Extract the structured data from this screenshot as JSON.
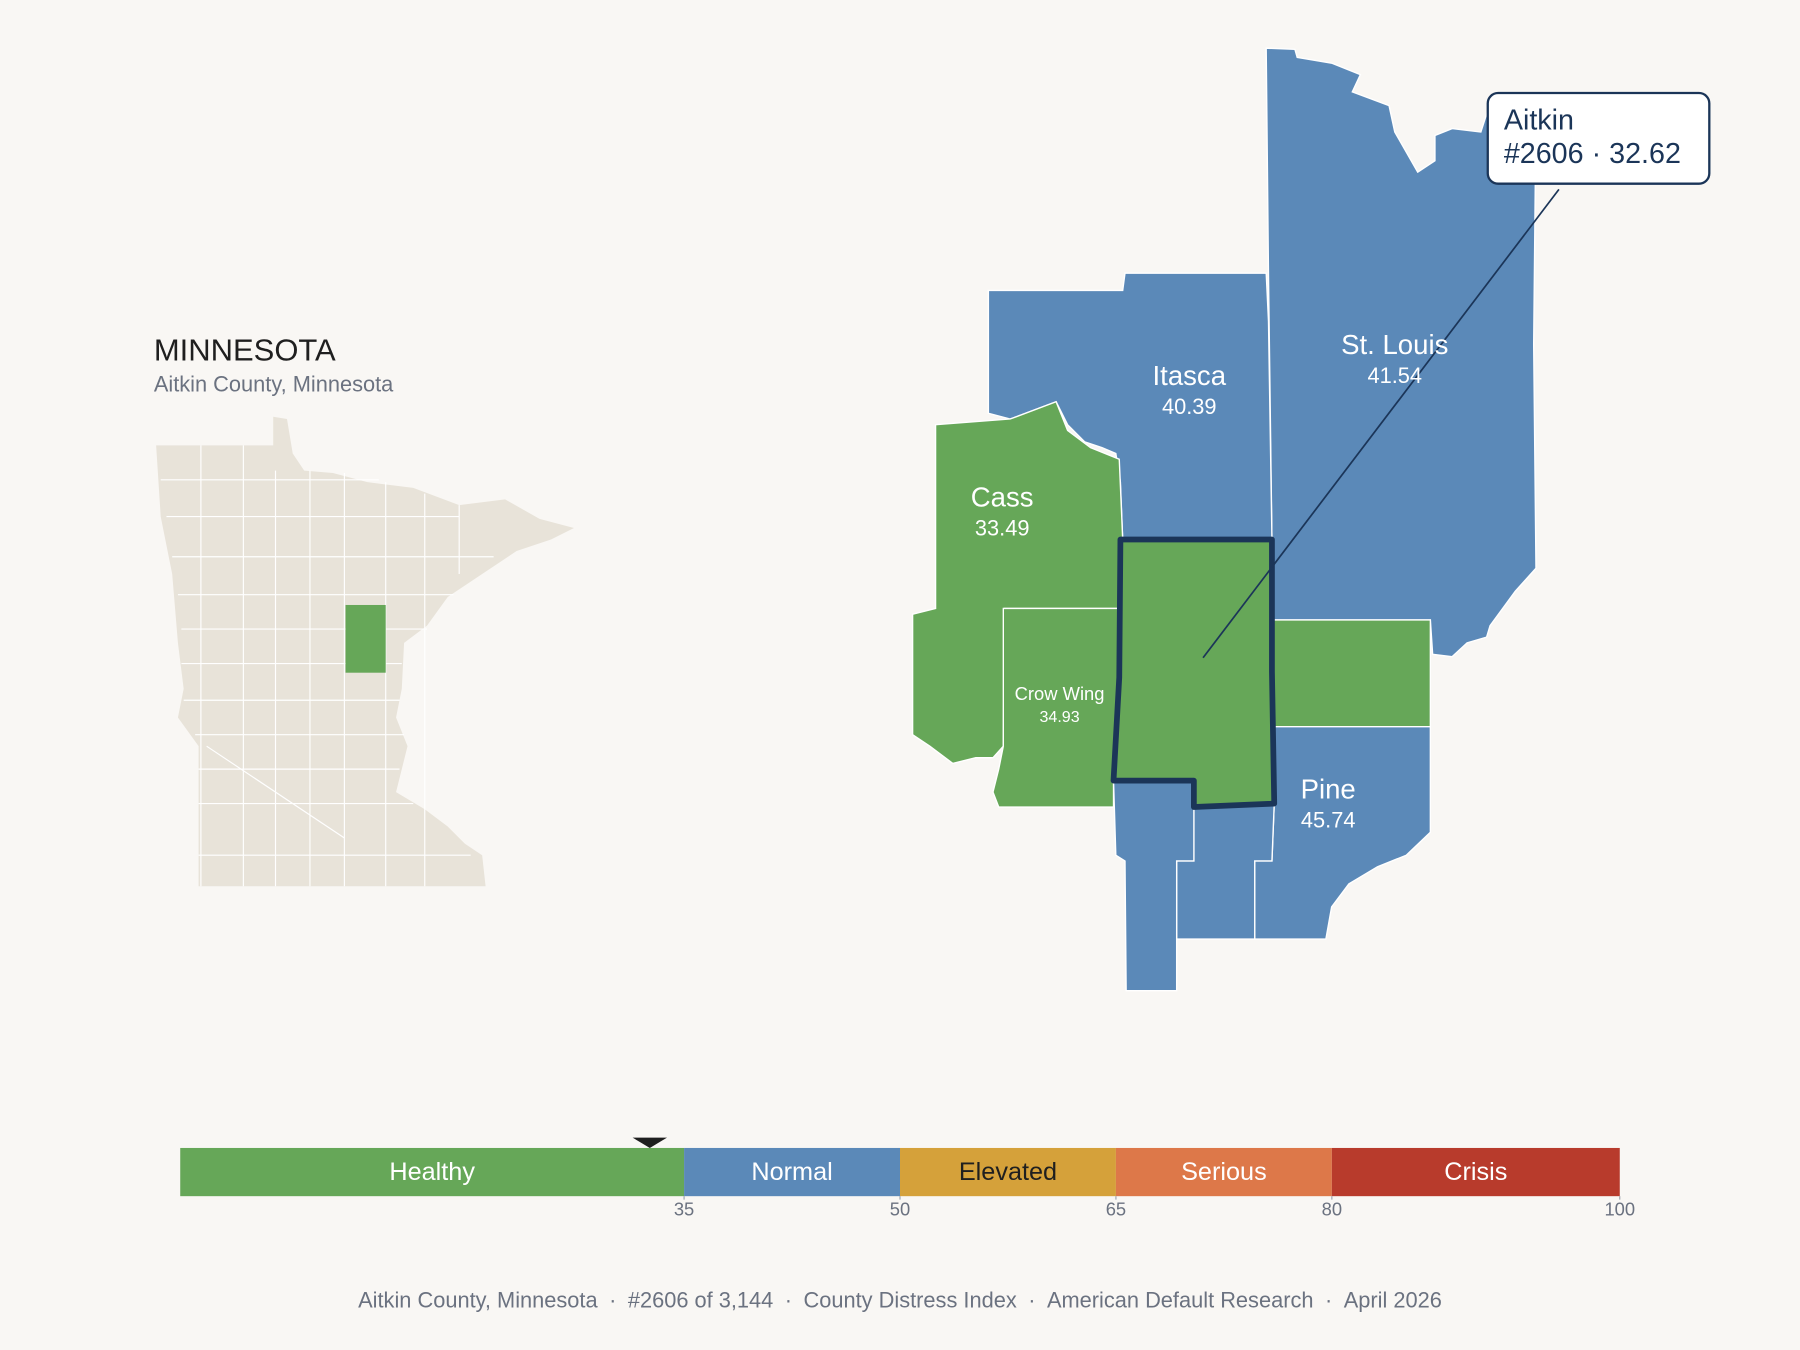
{
  "header": {
    "title": "MINNESOTA",
    "subtitle": "Aitkin County, Minnesota"
  },
  "callout": {
    "name": "Aitkin",
    "rank": "#2606",
    "separator": "·",
    "score": 32.62
  },
  "counties": [
    {
      "name": "Itasca",
      "score": 40.39
    },
    {
      "name": "St. Louis",
      "score": 41.54
    },
    {
      "name": "Cass",
      "score": 33.49
    },
    {
      "name": "Crow Wing",
      "score": 34.93
    },
    {
      "name": "Pine",
      "score": 45.74
    }
  ],
  "scale": {
    "lim": [
      0,
      100
    ],
    "ticks": [
      35,
      50,
      65,
      80,
      100
    ],
    "bands": [
      {
        "label": "Healthy",
        "color": "#66a758",
        "text_color": "#ffffff"
      },
      {
        "label": "Normal",
        "color": "#5b89b8",
        "text_color": "#ffffff"
      },
      {
        "label": "Elevated",
        "color": "#d5a13a",
        "text_color": "#1f1f1f"
      },
      {
        "label": "Serious",
        "color": "#dd7849",
        "text_color": "#ffffff"
      },
      {
        "label": "Crisis",
        "color": "#b83b2c",
        "text_color": "#ffffff"
      }
    ]
  },
  "footer": {
    "separator": "·",
    "items": [
      "Aitkin County, Minnesota",
      "#2606 of 3,144",
      "County Distress Index",
      "American Default Research",
      "April 2026"
    ]
  }
}
